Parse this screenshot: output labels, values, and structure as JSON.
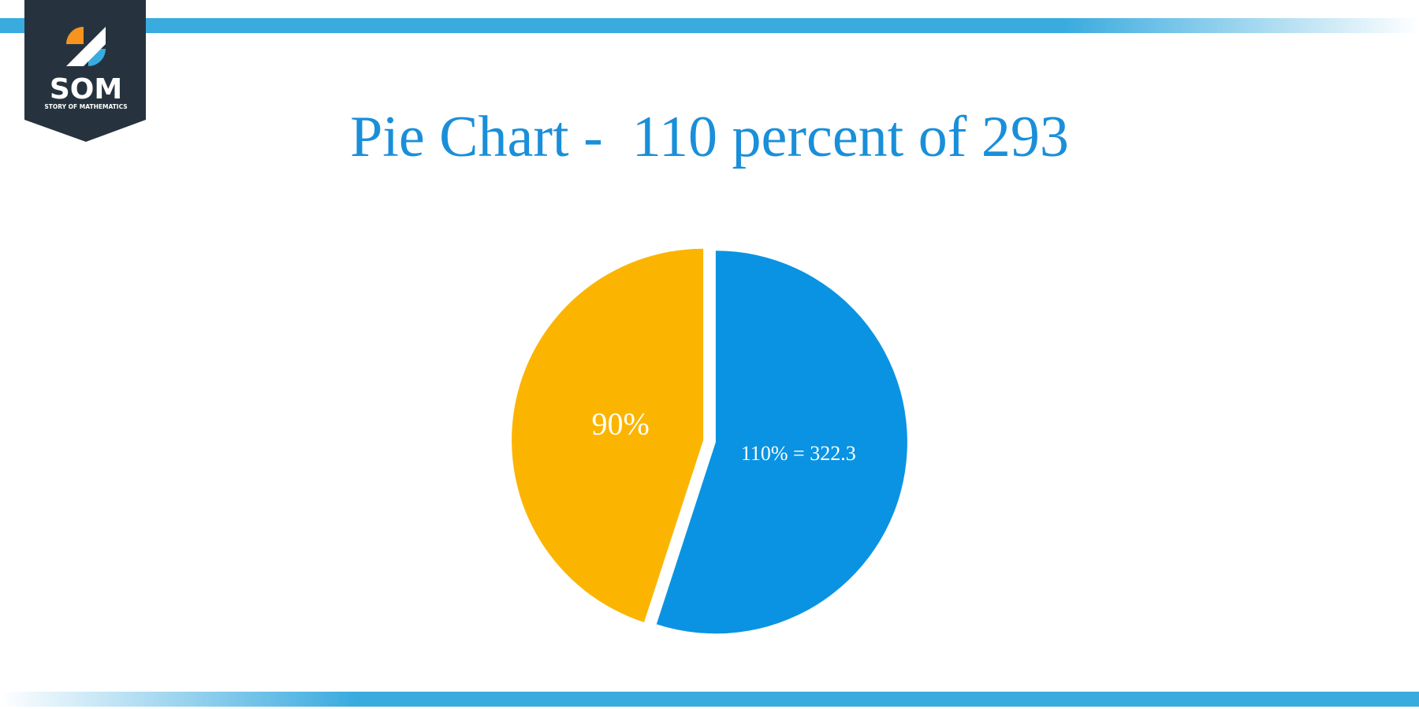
{
  "logo": {
    "text": "SOM",
    "tagline": "STORY OF MATHEMATICS"
  },
  "chart_data": {
    "type": "pie",
    "title": "Pie Chart -  110 percent of 293",
    "values": [
      110,
      90
    ],
    "value_labels": [
      "110% = 322.3",
      "90%"
    ],
    "colors": [
      "#0a93e2",
      "#fbb500"
    ],
    "start_angle": 0,
    "direction": "clockwise"
  }
}
